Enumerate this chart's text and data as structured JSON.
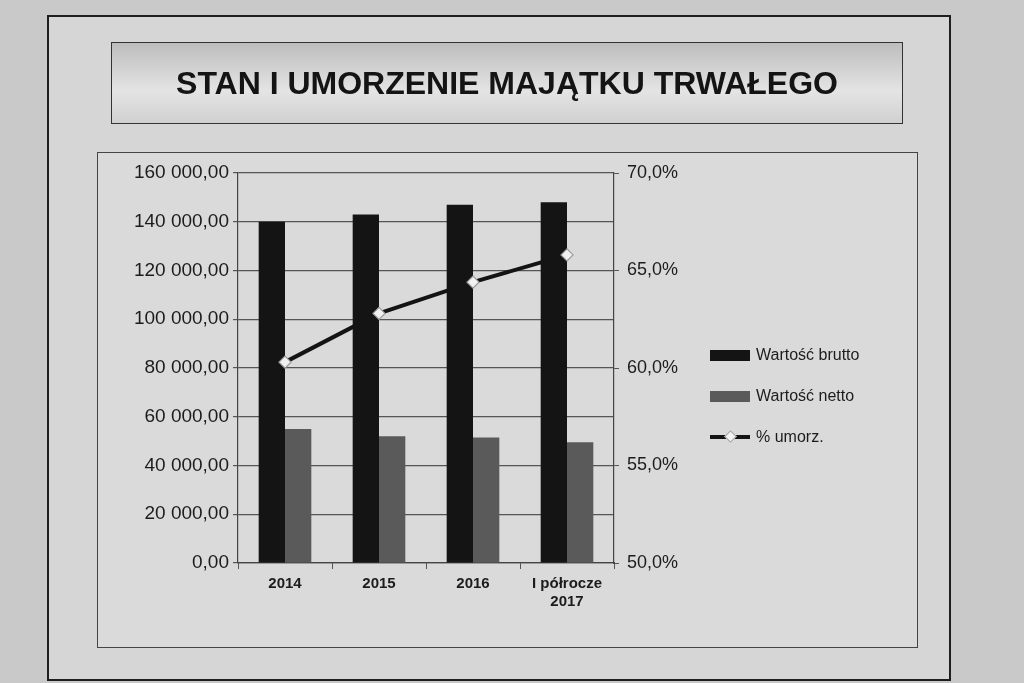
{
  "chart_data": {
    "type": "bar",
    "title": "STAN I UMORZENIE MAJĄTKU TRWAŁEGO",
    "categories": [
      "2014",
      "2015",
      "2016",
      "I półrocze 2017"
    ],
    "series": [
      {
        "name": "Wartość brutto",
        "color": "#141414",
        "values": [
          140000,
          143000,
          147000,
          148000
        ]
      },
      {
        "name": "Wartość netto",
        "color": "#5a5a5a",
        "values": [
          55000,
          52000,
          51500,
          49500
        ]
      },
      {
        "name": "% umorz.",
        "type": "line",
        "axis": "y2",
        "color": "#141414",
        "values": [
          60.3,
          62.8,
          64.4,
          65.8
        ]
      }
    ],
    "ylim": [
      0,
      160000
    ],
    "yticks": [
      {
        "value": 0,
        "label": "0,00"
      },
      {
        "value": 20000,
        "label": "20 000,00"
      },
      {
        "value": 40000,
        "label": "40 000,00"
      },
      {
        "value": 60000,
        "label": "60 000,00"
      },
      {
        "value": 80000,
        "label": "80 000,00"
      },
      {
        "value": 100000,
        "label": "100 000,00"
      },
      {
        "value": 120000,
        "label": "120 000,00"
      },
      {
        "value": 140000,
        "label": "140 000,00"
      },
      {
        "value": 160000,
        "label": "160 000,00"
      }
    ],
    "y2lim": [
      50,
      70
    ],
    "y2ticks": [
      {
        "value": 50,
        "label": "50,0%"
      },
      {
        "value": 55,
        "label": "55,0%"
      },
      {
        "value": 60,
        "label": "60,0%"
      },
      {
        "value": 65,
        "label": "65,0%"
      },
      {
        "value": 70,
        "label": "70,0%"
      }
    ],
    "grid": "y",
    "legend": "right",
    "marker": "diamond"
  }
}
